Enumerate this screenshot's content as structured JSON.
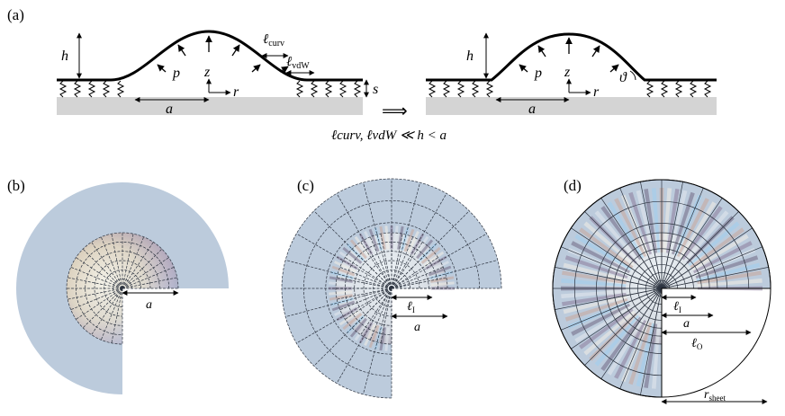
{
  "panel_a": {
    "label": "(a)",
    "left": {
      "h": "h",
      "p": "p",
      "z": "z",
      "r": "r",
      "a": "a",
      "s": "s",
      "l_curv": "ℓ",
      "l_curv_sub": "curv",
      "l_vdw": "ℓ",
      "l_vdw_sub": "vdW"
    },
    "right": {
      "h": "h",
      "p": "p",
      "z": "z",
      "r": "r",
      "a": "a",
      "theta": "ϑ"
    },
    "implies": "⟹",
    "condition": "ℓcurv, ℓvdW ≪ h < a"
  },
  "panel_b": {
    "label": "(b)",
    "a": "a"
  },
  "panel_c": {
    "label": "(c)",
    "l_I": "ℓ",
    "l_I_sub": "I",
    "a": "a"
  },
  "panel_d": {
    "label": "(d)",
    "l_I": "ℓ",
    "l_I_sub": "I",
    "a": "a",
    "l_O": "ℓ",
    "l_O_sub": "O",
    "r_sheet": "r",
    "r_sheet_sub": "sheet"
  },
  "colors": {
    "sheet": "#bccbdc",
    "substrate": "#d4d4d4",
    "grid": "#3a4654",
    "line": "#000000"
  }
}
